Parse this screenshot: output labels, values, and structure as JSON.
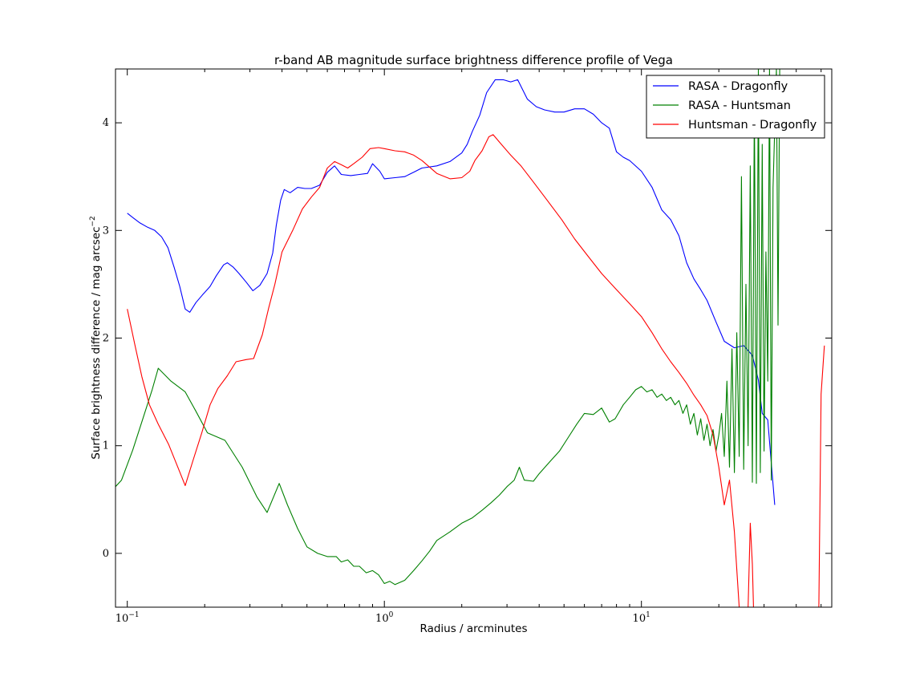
{
  "chart_data": {
    "type": "line",
    "title": "r-band AB magnitude surface brightness difference profile of Vega",
    "xlabel": "Radius / arcminutes",
    "ylabel": "Surface brightness difference / mag arcsec",
    "ylabel_sup": "−2",
    "x_scale": "log",
    "xlim": [
      0.09,
      55
    ],
    "ylim": [
      -0.5,
      4.5
    ],
    "x_ticks": [
      {
        "value": 0.1,
        "base": "10",
        "exp": "−1"
      },
      {
        "value": 1,
        "base": "10",
        "exp": "0"
      },
      {
        "value": 10,
        "base": "10",
        "exp": "1"
      }
    ],
    "y_ticks": [
      {
        "value": 0,
        "label": "0"
      },
      {
        "value": 1,
        "label": "1"
      },
      {
        "value": 2,
        "label": "2"
      },
      {
        "value": 3,
        "label": "3"
      },
      {
        "value": 4,
        "label": "4"
      }
    ],
    "grid": false,
    "legend_position": "top-right",
    "series": [
      {
        "name": "RASA - Dragonfly",
        "color": "#0000ff",
        "points": [
          [
            0.1,
            3.16
          ],
          [
            0.105,
            3.12
          ],
          [
            0.112,
            3.07
          ],
          [
            0.12,
            3.03
          ],
          [
            0.128,
            3.0
          ],
          [
            0.136,
            2.94
          ],
          [
            0.144,
            2.84
          ],
          [
            0.152,
            2.66
          ],
          [
            0.16,
            2.48
          ],
          [
            0.168,
            2.27
          ],
          [
            0.175,
            2.24
          ],
          [
            0.185,
            2.33
          ],
          [
            0.196,
            2.4
          ],
          [
            0.21,
            2.48
          ],
          [
            0.222,
            2.58
          ],
          [
            0.237,
            2.68
          ],
          [
            0.245,
            2.7
          ],
          [
            0.258,
            2.66
          ],
          [
            0.272,
            2.6
          ],
          [
            0.29,
            2.52
          ],
          [
            0.308,
            2.44
          ],
          [
            0.328,
            2.49
          ],
          [
            0.35,
            2.6
          ],
          [
            0.368,
            2.79
          ],
          [
            0.38,
            3.05
          ],
          [
            0.395,
            3.28
          ],
          [
            0.408,
            3.38
          ],
          [
            0.43,
            3.35
          ],
          [
            0.46,
            3.4
          ],
          [
            0.49,
            3.39
          ],
          [
            0.52,
            3.39
          ],
          [
            0.56,
            3.42
          ],
          [
            0.6,
            3.54
          ],
          [
            0.64,
            3.6
          ],
          [
            0.68,
            3.52
          ],
          [
            0.74,
            3.51
          ],
          [
            0.8,
            3.52
          ],
          [
            0.86,
            3.53
          ],
          [
            0.9,
            3.62
          ],
          [
            0.96,
            3.55
          ],
          [
            1.0,
            3.48
          ],
          [
            1.1,
            3.49
          ],
          [
            1.2,
            3.5
          ],
          [
            1.3,
            3.54
          ],
          [
            1.4,
            3.58
          ],
          [
            1.6,
            3.6
          ],
          [
            1.8,
            3.64
          ],
          [
            2.0,
            3.72
          ],
          [
            2.1,
            3.8
          ],
          [
            2.2,
            3.92
          ],
          [
            2.35,
            4.07
          ],
          [
            2.5,
            4.28
          ],
          [
            2.7,
            4.4
          ],
          [
            2.9,
            4.4
          ],
          [
            3.1,
            4.38
          ],
          [
            3.3,
            4.4
          ],
          [
            3.6,
            4.22
          ],
          [
            3.9,
            4.15
          ],
          [
            4.2,
            4.12
          ],
          [
            4.6,
            4.1
          ],
          [
            5.0,
            4.1
          ],
          [
            5.5,
            4.13
          ],
          [
            6.0,
            4.13
          ],
          [
            6.5,
            4.08
          ],
          [
            7.0,
            4.0
          ],
          [
            7.5,
            3.95
          ],
          [
            8.0,
            3.73
          ],
          [
            8.5,
            3.68
          ],
          [
            9.0,
            3.65
          ],
          [
            10.0,
            3.55
          ],
          [
            11.0,
            3.4
          ],
          [
            12.0,
            3.19
          ],
          [
            13.0,
            3.1
          ],
          [
            14.0,
            2.95
          ],
          [
            15.0,
            2.7
          ],
          [
            16.0,
            2.55
          ],
          [
            17.0,
            2.45
          ],
          [
            18.0,
            2.35
          ],
          [
            19.5,
            2.15
          ],
          [
            21.0,
            1.97
          ],
          [
            23.0,
            1.91
          ],
          [
            25.0,
            1.93
          ],
          [
            27.0,
            1.84
          ],
          [
            28.5,
            1.61
          ],
          [
            29.5,
            1.3
          ],
          [
            31.0,
            1.24
          ],
          [
            33.0,
            0.45
          ]
        ]
      },
      {
        "name": "RASA - Huntsman",
        "color": "#008000",
        "points": [
          [
            0.09,
            0.62
          ],
          [
            0.095,
            0.68
          ],
          [
            0.105,
            0.96
          ],
          [
            0.115,
            1.25
          ],
          [
            0.125,
            1.52
          ],
          [
            0.132,
            1.72
          ],
          [
            0.148,
            1.6
          ],
          [
            0.168,
            1.5
          ],
          [
            0.185,
            1.32
          ],
          [
            0.205,
            1.12
          ],
          [
            0.24,
            1.05
          ],
          [
            0.28,
            0.8
          ],
          [
            0.32,
            0.52
          ],
          [
            0.35,
            0.38
          ],
          [
            0.39,
            0.65
          ],
          [
            0.42,
            0.45
          ],
          [
            0.46,
            0.23
          ],
          [
            0.5,
            0.06
          ],
          [
            0.55,
            0.0
          ],
          [
            0.6,
            -0.03
          ],
          [
            0.65,
            -0.03
          ],
          [
            0.68,
            -0.08
          ],
          [
            0.72,
            -0.06
          ],
          [
            0.76,
            -0.12
          ],
          [
            0.8,
            -0.12
          ],
          [
            0.85,
            -0.18
          ],
          [
            0.9,
            -0.16
          ],
          [
            0.95,
            -0.2
          ],
          [
            1.0,
            -0.28
          ],
          [
            1.05,
            -0.26
          ],
          [
            1.1,
            -0.29
          ],
          [
            1.2,
            -0.25
          ],
          [
            1.3,
            -0.16
          ],
          [
            1.4,
            -0.07
          ],
          [
            1.5,
            0.02
          ],
          [
            1.6,
            0.12
          ],
          [
            1.8,
            0.2
          ],
          [
            2.0,
            0.28
          ],
          [
            2.2,
            0.33
          ],
          [
            2.4,
            0.4
          ],
          [
            2.6,
            0.47
          ],
          [
            2.8,
            0.54
          ],
          [
            3.0,
            0.62
          ],
          [
            3.2,
            0.68
          ],
          [
            3.35,
            0.8
          ],
          [
            3.5,
            0.68
          ],
          [
            3.8,
            0.67
          ],
          [
            4.0,
            0.74
          ],
          [
            4.4,
            0.85
          ],
          [
            4.8,
            0.95
          ],
          [
            5.2,
            1.08
          ],
          [
            5.6,
            1.2
          ],
          [
            6.0,
            1.3
          ],
          [
            6.5,
            1.29
          ],
          [
            7.0,
            1.35
          ],
          [
            7.5,
            1.22
          ],
          [
            7.9,
            1.25
          ],
          [
            8.5,
            1.38
          ],
          [
            9.0,
            1.45
          ],
          [
            9.5,
            1.52
          ],
          [
            10.0,
            1.55
          ],
          [
            10.5,
            1.5
          ],
          [
            11.0,
            1.52
          ],
          [
            11.5,
            1.45
          ],
          [
            12.0,
            1.48
          ],
          [
            12.5,
            1.42
          ],
          [
            13.0,
            1.45
          ],
          [
            13.5,
            1.38
          ],
          [
            14.0,
            1.42
          ],
          [
            14.5,
            1.3
          ],
          [
            15.0,
            1.38
          ],
          [
            15.5,
            1.2
          ],
          [
            16.0,
            1.3
          ],
          [
            16.5,
            1.1
          ],
          [
            17.0,
            1.25
          ],
          [
            17.5,
            1.05
          ],
          [
            18.0,
            1.2
          ],
          [
            18.5,
            1.0
          ],
          [
            19.0,
            1.15
          ],
          [
            19.5,
            0.95
          ],
          [
            20.0,
            1.1
          ],
          [
            20.5,
            1.3
          ],
          [
            21.0,
            0.9
          ],
          [
            21.5,
            1.6
          ],
          [
            22.0,
            0.8
          ],
          [
            22.5,
            1.9
          ],
          [
            23.0,
            0.75
          ],
          [
            23.5,
            2.05
          ],
          [
            24.0,
            0.9
          ],
          [
            24.5,
            3.5
          ],
          [
            25.0,
            0.78
          ],
          [
            25.5,
            2.5
          ],
          [
            26.0,
            1.0
          ],
          [
            26.5,
            3.6
          ],
          [
            27.0,
            0.66
          ],
          [
            27.5,
            4.2
          ],
          [
            28.0,
            0.65
          ],
          [
            28.5,
            4.5
          ],
          [
            29.0,
            0.75
          ],
          [
            29.5,
            3.8
          ],
          [
            30.0,
            0.95
          ],
          [
            30.5,
            2.8
          ],
          [
            31.0,
            1.6
          ],
          [
            31.5,
            4.5
          ],
          [
            32.0,
            0.68
          ],
          [
            32.5,
            3.4
          ],
          [
            33.5,
            4.5
          ],
          [
            34.0,
            2.12
          ],
          [
            34.5,
            4.5
          ]
        ]
      },
      {
        "name": "Huntsman - Dragonfly",
        "color": "#ff0000",
        "points": [
          [
            0.1,
            2.27
          ],
          [
            0.107,
            1.94
          ],
          [
            0.114,
            1.64
          ],
          [
            0.122,
            1.38
          ],
          [
            0.132,
            1.2
          ],
          [
            0.145,
            1.01
          ],
          [
            0.158,
            0.79
          ],
          [
            0.168,
            0.63
          ],
          [
            0.18,
            0.86
          ],
          [
            0.195,
            1.12
          ],
          [
            0.21,
            1.38
          ],
          [
            0.225,
            1.53
          ],
          [
            0.245,
            1.65
          ],
          [
            0.265,
            1.78
          ],
          [
            0.29,
            1.8
          ],
          [
            0.31,
            1.81
          ],
          [
            0.335,
            2.03
          ],
          [
            0.355,
            2.28
          ],
          [
            0.375,
            2.5
          ],
          [
            0.4,
            2.8
          ],
          [
            0.44,
            3.0
          ],
          [
            0.48,
            3.2
          ],
          [
            0.52,
            3.31
          ],
          [
            0.56,
            3.4
          ],
          [
            0.6,
            3.58
          ],
          [
            0.64,
            3.64
          ],
          [
            0.68,
            3.61
          ],
          [
            0.72,
            3.58
          ],
          [
            0.76,
            3.62
          ],
          [
            0.82,
            3.68
          ],
          [
            0.88,
            3.76
          ],
          [
            0.95,
            3.77
          ],
          [
            1.0,
            3.76
          ],
          [
            1.1,
            3.74
          ],
          [
            1.2,
            3.73
          ],
          [
            1.3,
            3.7
          ],
          [
            1.4,
            3.65
          ],
          [
            1.6,
            3.53
          ],
          [
            1.8,
            3.48
          ],
          [
            2.0,
            3.49
          ],
          [
            2.15,
            3.55
          ],
          [
            2.25,
            3.65
          ],
          [
            2.4,
            3.74
          ],
          [
            2.55,
            3.87
          ],
          [
            2.65,
            3.89
          ],
          [
            2.85,
            3.8
          ],
          [
            3.1,
            3.7
          ],
          [
            3.4,
            3.6
          ],
          [
            3.8,
            3.45
          ],
          [
            4.3,
            3.28
          ],
          [
            4.9,
            3.1
          ],
          [
            5.5,
            2.92
          ],
          [
            6.2,
            2.76
          ],
          [
            7.0,
            2.6
          ],
          [
            8.0,
            2.45
          ],
          [
            9.0,
            2.32
          ],
          [
            10.0,
            2.2
          ],
          [
            11.0,
            2.05
          ],
          [
            12.0,
            1.9
          ],
          [
            13.0,
            1.78
          ],
          [
            14.0,
            1.68
          ],
          [
            15.0,
            1.58
          ],
          [
            16.0,
            1.47
          ],
          [
            17.0,
            1.38
          ],
          [
            18.0,
            1.28
          ],
          [
            19.0,
            1.1
          ],
          [
            20.0,
            0.8
          ],
          [
            21.0,
            0.45
          ],
          [
            22.0,
            0.68
          ],
          [
            23.0,
            0.2
          ],
          [
            24.0,
            -0.5
          ],
          [
            25.0,
            -0.9
          ],
          [
            26.0,
            -0.5
          ],
          [
            26.5,
            0.28
          ],
          [
            27.0,
            -0.1
          ],
          [
            28.0,
            -1.5
          ],
          [
            40.0,
            -1.5
          ],
          [
            49.0,
            -0.5
          ],
          [
            50.0,
            1.48
          ],
          [
            51.5,
            1.93
          ]
        ]
      }
    ]
  }
}
